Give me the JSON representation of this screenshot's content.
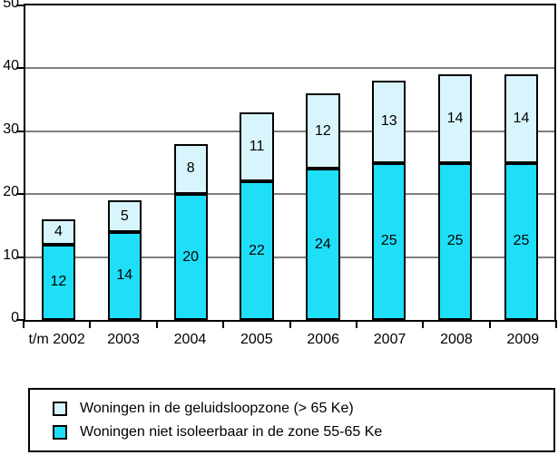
{
  "page": {
    "background_color": "#ffffff",
    "text_color": "#000000"
  },
  "chart_data": {
    "type": "bar",
    "stacked": true,
    "title": "",
    "xlabel": "",
    "ylabel": "",
    "categories": [
      "t/m 2002",
      "2003",
      "2004",
      "2005",
      "2006",
      "2007",
      "2008",
      "2009"
    ],
    "series": [
      {
        "name": "Woningen niet isoleerbaar in de zone 55-65 Ke",
        "color": "#1FDFF8",
        "values": [
          12,
          14,
          20,
          22,
          24,
          25,
          25,
          25
        ]
      },
      {
        "name": "Woningen in de geluidsloopzone (> 65 Ke)",
        "color": "#D8F5FD",
        "values": [
          4,
          5,
          8,
          11,
          12,
          13,
          14,
          14
        ]
      }
    ],
    "stack_totals": [
      16,
      19,
      28,
      33,
      36,
      38,
      39,
      39
    ],
    "bar_value_labels": true,
    "ylim": [
      0,
      50
    ],
    "yticks": [
      0,
      10,
      20,
      30,
      40,
      50
    ],
    "grid": true,
    "gridline_color": "#7f7f7f",
    "axis_color": "#000000",
    "legend_position": "bottom",
    "legend": [
      {
        "label": "Woningen in de geluidsloopzone (> 65 Ke)",
        "swatch_color": "#D8F5FD"
      },
      {
        "label": "Woningen niet isoleerbaar in de zone 55-65 Ke",
        "swatch_color": "#1FDFF8"
      }
    ]
  }
}
